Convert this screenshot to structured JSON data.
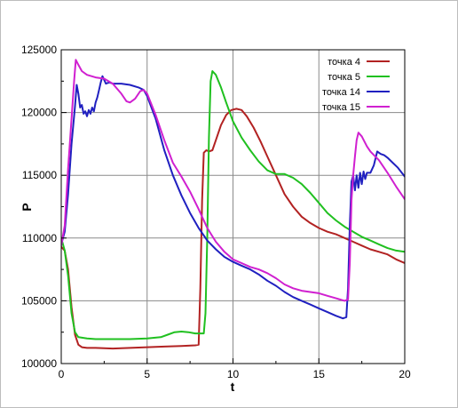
{
  "chart_data": {
    "type": "line",
    "xlabel": "t",
    "ylabel": "P",
    "xlim": [
      0,
      20
    ],
    "ylim": [
      100000,
      125000
    ],
    "xticks": [
      0,
      5,
      10,
      15,
      20
    ],
    "xtick_labels": [
      "0",
      "5",
      "10",
      "15",
      "20"
    ],
    "yticks": [
      100000,
      105000,
      110000,
      115000,
      120000,
      125000
    ],
    "ytick_labels": [
      "100000",
      "105000",
      "110000",
      "115000",
      "120000",
      "125000"
    ],
    "grid": true,
    "legend_position": "top-right",
    "series": [
      {
        "name": "точка 4",
        "color": "#b22222",
        "points": [
          [
            0,
            109300
          ],
          [
            0.2,
            109000
          ],
          [
            0.4,
            107500
          ],
          [
            0.6,
            104500
          ],
          [
            0.8,
            102300
          ],
          [
            1.0,
            101500
          ],
          [
            1.2,
            101300
          ],
          [
            1.5,
            101250
          ],
          [
            2,
            101250
          ],
          [
            3,
            101200
          ],
          [
            4,
            101250
          ],
          [
            5,
            101300
          ],
          [
            6,
            101350
          ],
          [
            7,
            101400
          ],
          [
            7.8,
            101450
          ],
          [
            8.0,
            101500
          ],
          [
            8.1,
            106000
          ],
          [
            8.2,
            113000
          ],
          [
            8.3,
            116800
          ],
          [
            8.45,
            117000
          ],
          [
            8.6,
            116900
          ],
          [
            8.8,
            117000
          ],
          [
            9.0,
            117800
          ],
          [
            9.3,
            119000
          ],
          [
            9.6,
            119800
          ],
          [
            9.9,
            120200
          ],
          [
            10.2,
            120300
          ],
          [
            10.5,
            120200
          ],
          [
            10.8,
            119700
          ],
          [
            11.2,
            118800
          ],
          [
            11.6,
            117700
          ],
          [
            12,
            116500
          ],
          [
            12.5,
            115000
          ],
          [
            13,
            113500
          ],
          [
            13.5,
            112500
          ],
          [
            14,
            111700
          ],
          [
            14.5,
            111200
          ],
          [
            15,
            110800
          ],
          [
            15.5,
            110500
          ],
          [
            16,
            110300
          ],
          [
            16.5,
            110000
          ],
          [
            17,
            109700
          ],
          [
            17.5,
            109400
          ],
          [
            18,
            109100
          ],
          [
            18.5,
            108900
          ],
          [
            19,
            108700
          ],
          [
            19.5,
            108300
          ],
          [
            20,
            108000
          ]
        ]
      },
      {
        "name": "точка 5",
        "color": "#20c020",
        "points": [
          [
            0,
            110000
          ],
          [
            0.2,
            109000
          ],
          [
            0.4,
            107000
          ],
          [
            0.6,
            104000
          ],
          [
            0.8,
            102500
          ],
          [
            1.0,
            102100
          ],
          [
            1.5,
            102000
          ],
          [
            2,
            101950
          ],
          [
            3,
            101950
          ],
          [
            4,
            101950
          ],
          [
            5,
            102000
          ],
          [
            5.8,
            102100
          ],
          [
            6.2,
            102300
          ],
          [
            6.6,
            102500
          ],
          [
            7.0,
            102550
          ],
          [
            7.4,
            102500
          ],
          [
            7.8,
            102400
          ],
          [
            8.3,
            102400
          ],
          [
            8.4,
            104000
          ],
          [
            8.5,
            110000
          ],
          [
            8.6,
            118000
          ],
          [
            8.7,
            122500
          ],
          [
            8.8,
            123300
          ],
          [
            9.0,
            123000
          ],
          [
            9.3,
            122000
          ],
          [
            9.6,
            120800
          ],
          [
            10,
            119300
          ],
          [
            10.5,
            118000
          ],
          [
            11,
            117000
          ],
          [
            11.5,
            116100
          ],
          [
            12,
            115400
          ],
          [
            12.5,
            115100
          ],
          [
            13,
            115100
          ],
          [
            13.5,
            114800
          ],
          [
            14,
            114300
          ],
          [
            14.5,
            113600
          ],
          [
            15,
            112800
          ],
          [
            15.5,
            112000
          ],
          [
            16,
            111400
          ],
          [
            16.5,
            110900
          ],
          [
            17,
            110500
          ],
          [
            17.5,
            110100
          ],
          [
            18,
            109800
          ],
          [
            18.5,
            109500
          ],
          [
            19,
            109200
          ],
          [
            19.5,
            109000
          ],
          [
            20,
            108900
          ]
        ]
      },
      {
        "name": "точка 14",
        "color": "#2020c0",
        "points": [
          [
            0,
            109500
          ],
          [
            0.2,
            110500
          ],
          [
            0.4,
            113500
          ],
          [
            0.6,
            117500
          ],
          [
            0.8,
            120500
          ],
          [
            0.9,
            122200
          ],
          [
            1.0,
            121500
          ],
          [
            1.1,
            120400
          ],
          [
            1.2,
            120600
          ],
          [
            1.3,
            119900
          ],
          [
            1.4,
            120100
          ],
          [
            1.5,
            119700
          ],
          [
            1.6,
            120200
          ],
          [
            1.7,
            119900
          ],
          [
            1.8,
            120400
          ],
          [
            1.9,
            120100
          ],
          [
            2.0,
            120800
          ],
          [
            2.1,
            121200
          ],
          [
            2.2,
            121800
          ],
          [
            2.3,
            122400
          ],
          [
            2.4,
            122900
          ],
          [
            2.5,
            122600
          ],
          [
            2.6,
            122300
          ],
          [
            2.8,
            122400
          ],
          [
            3.0,
            122300
          ],
          [
            3.5,
            122300
          ],
          [
            4.0,
            122200
          ],
          [
            4.5,
            122000
          ],
          [
            4.8,
            121800
          ],
          [
            5.0,
            121300
          ],
          [
            5.5,
            119500
          ],
          [
            6,
            117000
          ],
          [
            6.5,
            115000
          ],
          [
            7,
            113400
          ],
          [
            7.5,
            112000
          ],
          [
            8,
            110800
          ],
          [
            8.5,
            109800
          ],
          [
            9,
            109100
          ],
          [
            9.5,
            108500
          ],
          [
            10,
            108100
          ],
          [
            10.5,
            107800
          ],
          [
            11,
            107500
          ],
          [
            11.5,
            107100
          ],
          [
            12,
            106600
          ],
          [
            12.5,
            106200
          ],
          [
            13,
            105700
          ],
          [
            13.5,
            105300
          ],
          [
            14,
            105000
          ],
          [
            14.5,
            104700
          ],
          [
            15,
            104400
          ],
          [
            15.5,
            104100
          ],
          [
            16,
            103800
          ],
          [
            16.4,
            103600
          ],
          [
            16.6,
            103700
          ],
          [
            16.7,
            106000
          ],
          [
            16.8,
            111000
          ],
          [
            16.9,
            114500
          ],
          [
            17.0,
            115000
          ],
          [
            17.1,
            113800
          ],
          [
            17.2,
            115000
          ],
          [
            17.3,
            114000
          ],
          [
            17.4,
            115200
          ],
          [
            17.5,
            114300
          ],
          [
            17.6,
            115300
          ],
          [
            17.7,
            114700
          ],
          [
            17.8,
            115200
          ],
          [
            18.0,
            115200
          ],
          [
            18.2,
            115800
          ],
          [
            18.4,
            116900
          ],
          [
            18.6,
            116700
          ],
          [
            18.8,
            116600
          ],
          [
            19,
            116400
          ],
          [
            19.3,
            116000
          ],
          [
            19.6,
            115600
          ],
          [
            20,
            114900
          ]
        ]
      },
      {
        "name": "точка 15",
        "color": "#d020d0",
        "points": [
          [
            0,
            109400
          ],
          [
            0.2,
            111000
          ],
          [
            0.4,
            115500
          ],
          [
            0.6,
            119500
          ],
          [
            0.75,
            122500
          ],
          [
            0.85,
            124200
          ],
          [
            1.0,
            123800
          ],
          [
            1.2,
            123300
          ],
          [
            1.5,
            123000
          ],
          [
            2,
            122800
          ],
          [
            2.5,
            122700
          ],
          [
            3,
            122300
          ],
          [
            3.5,
            121500
          ],
          [
            3.8,
            120900
          ],
          [
            4.0,
            120800
          ],
          [
            4.3,
            121100
          ],
          [
            4.6,
            121700
          ],
          [
            4.8,
            121800
          ],
          [
            5.0,
            121500
          ],
          [
            5.5,
            119800
          ],
          [
            6,
            117800
          ],
          [
            6.5,
            116000
          ],
          [
            7,
            114900
          ],
          [
            7.5,
            113700
          ],
          [
            8,
            112300
          ],
          [
            8.5,
            110800
          ],
          [
            9,
            109700
          ],
          [
            9.5,
            108900
          ],
          [
            10,
            108300
          ],
          [
            10.5,
            108000
          ],
          [
            11,
            107700
          ],
          [
            11.5,
            107500
          ],
          [
            12,
            107200
          ],
          [
            12.5,
            106800
          ],
          [
            13,
            106300
          ],
          [
            13.5,
            106000
          ],
          [
            14,
            105800
          ],
          [
            14.5,
            105700
          ],
          [
            15,
            105600
          ],
          [
            15.5,
            105400
          ],
          [
            16,
            105200
          ],
          [
            16.5,
            105000
          ],
          [
            16.7,
            105100
          ],
          [
            16.8,
            108000
          ],
          [
            16.9,
            113000
          ],
          [
            17.0,
            115000
          ],
          [
            17.1,
            116500
          ],
          [
            17.2,
            117800
          ],
          [
            17.3,
            118400
          ],
          [
            17.5,
            118100
          ],
          [
            17.8,
            117300
          ],
          [
            18,
            116900
          ],
          [
            18.5,
            116200
          ],
          [
            19,
            115200
          ],
          [
            19.5,
            114100
          ],
          [
            20,
            113100
          ]
        ]
      }
    ]
  }
}
